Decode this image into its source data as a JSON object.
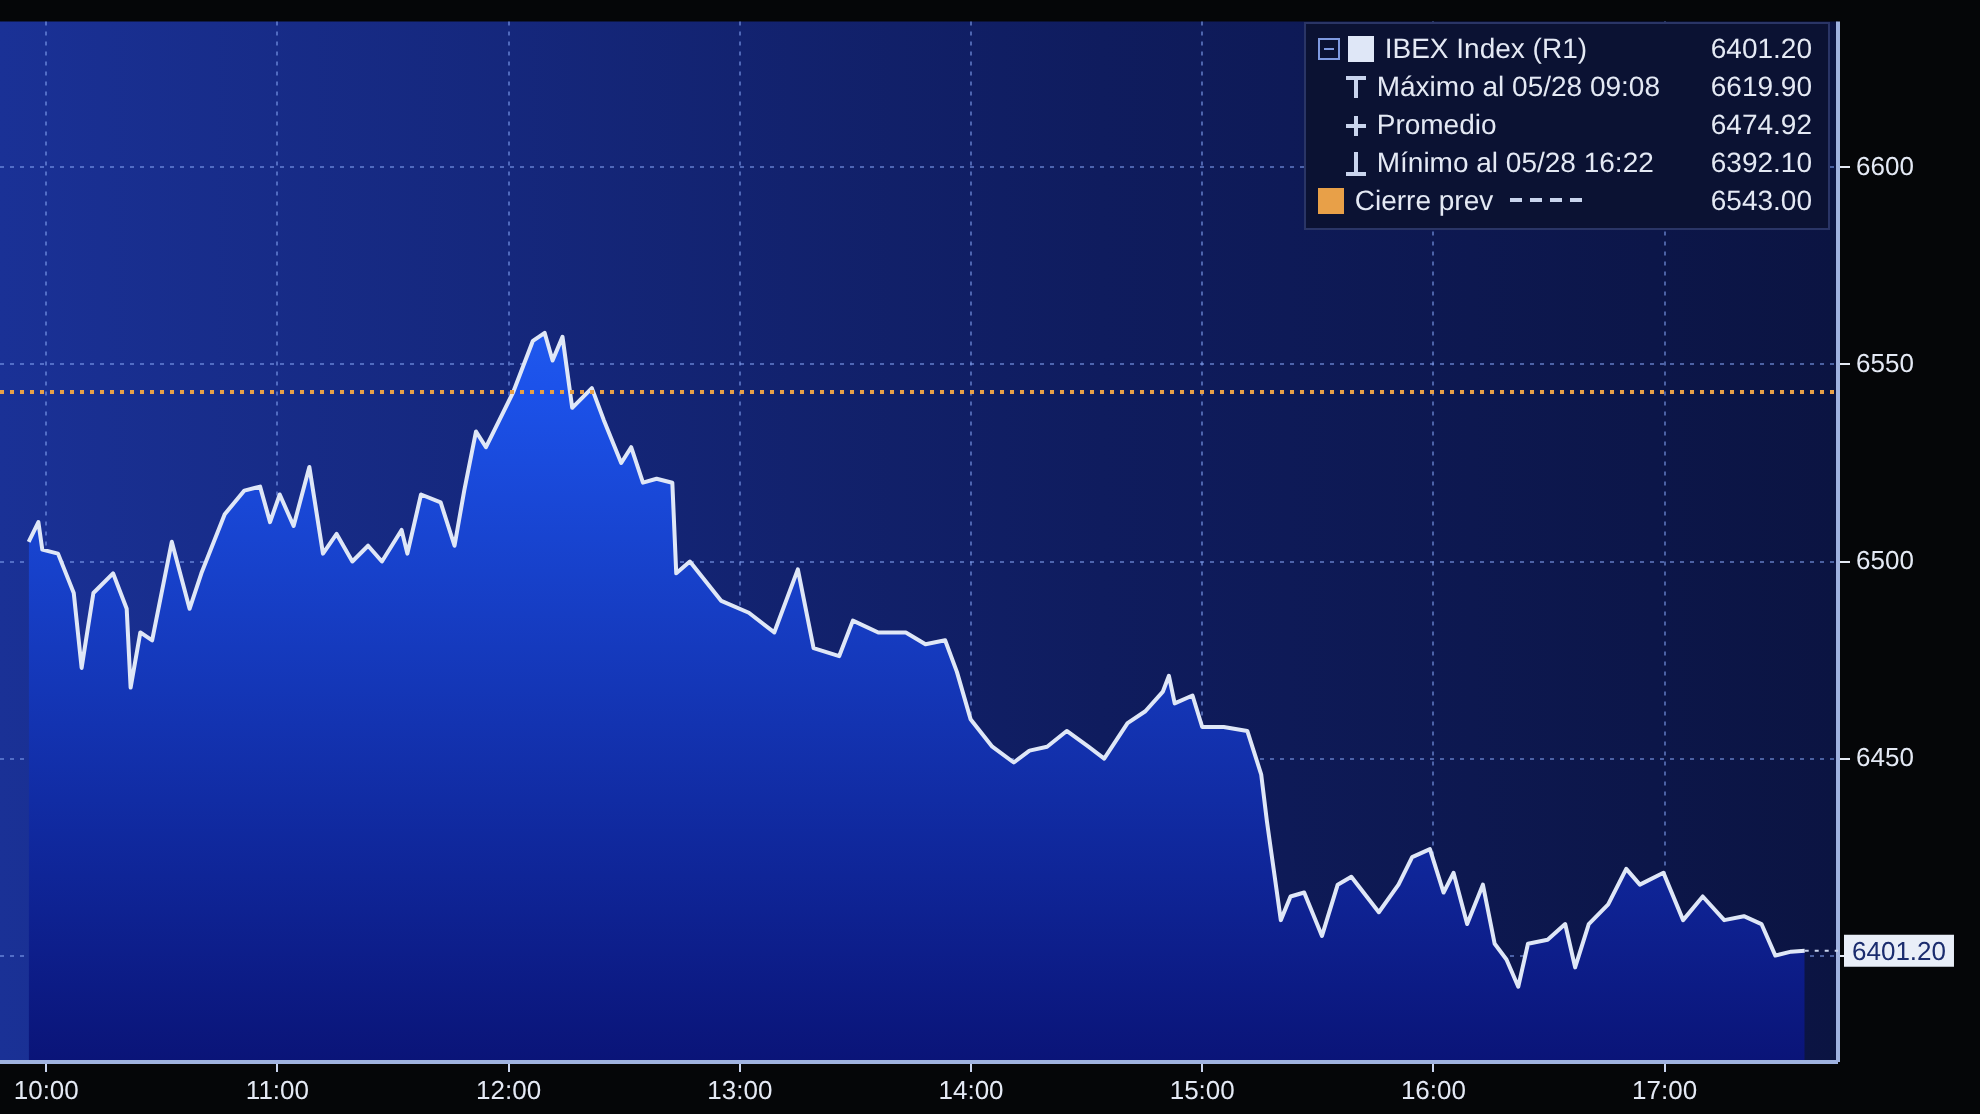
{
  "chart_data": {
    "type": "area",
    "x": [
      9.924,
      9.966,
      9.983,
      10.051,
      10.119,
      10.153,
      10.204,
      10.289,
      10.348,
      10.365,
      10.407,
      10.458,
      10.543,
      10.62,
      10.671,
      10.772,
      10.857,
      10.925,
      10.968,
      11.01,
      11.07,
      11.138,
      11.197,
      11.256,
      11.324,
      11.392,
      11.452,
      11.537,
      11.562,
      11.621,
      11.706,
      11.766,
      11.808,
      11.859,
      11.902,
      11.961,
      12.02,
      12.105,
      12.156,
      12.19,
      12.233,
      12.275,
      12.36,
      12.411,
      12.487,
      12.53,
      12.581,
      12.64,
      12.708,
      12.725,
      12.784,
      12.92,
      13.039,
      13.149,
      13.251,
      13.319,
      13.43,
      13.489,
      13.599,
      13.718,
      13.803,
      13.888,
      13.939,
      13.998,
      14.092,
      14.185,
      14.253,
      14.329,
      14.414,
      14.508,
      14.576,
      14.677,
      14.754,
      14.83,
      14.856,
      14.881,
      14.958,
      15.0,
      15.093,
      15.195,
      15.255,
      15.28,
      15.34,
      15.382,
      15.441,
      15.518,
      15.586,
      15.645,
      15.764,
      15.849,
      15.908,
      15.985,
      16.044,
      16.087,
      16.146,
      16.214,
      16.265,
      16.316,
      16.367,
      16.409,
      16.494,
      16.57,
      16.613,
      16.672,
      16.756,
      16.834,
      16.893,
      16.995,
      17.08,
      17.165,
      17.258,
      17.343,
      17.419,
      17.479,
      17.547,
      17.606
    ],
    "series": [
      {
        "name": "IBEX Index (R1)",
        "color": "#dfe7f7",
        "values": [
          6505,
          6510,
          6503,
          6502,
          6492,
          6473,
          6492,
          6497,
          6488,
          6468,
          6482,
          6480,
          6505,
          6488,
          6497,
          6512,
          6518,
          6519,
          6510,
          6517,
          6509,
          6524,
          6502,
          6507,
          6500,
          6504,
          6500,
          6508,
          6502,
          6517,
          6515,
          6504,
          6518,
          6533,
          6529,
          6536,
          6543,
          6556,
          6558,
          6551,
          6557,
          6539,
          6544,
          6536,
          6525,
          6529,
          6520,
          6521,
          6520,
          6497,
          6500,
          6490,
          6487,
          6482,
          6498,
          6478,
          6476,
          6485,
          6482,
          6482,
          6479,
          6480,
          6472,
          6460,
          6453,
          6449,
          6452,
          6453,
          6457,
          6453,
          6450,
          6459,
          6462,
          6467,
          6471,
          6464,
          6466,
          6458,
          6458,
          6457,
          6446,
          6434,
          6409,
          6415,
          6416,
          6405,
          6418,
          6420,
          6411,
          6418,
          6425,
          6427,
          6416,
          6421,
          6408,
          6418,
          6403,
          6399,
          6392.1,
          6403,
          6404,
          6408,
          6397,
          6408,
          6413,
          6422,
          6418,
          6421,
          6409,
          6415,
          6409,
          6410,
          6408,
          6400,
          6401,
          6401.2
        ]
      }
    ],
    "xlim": [
      9.8,
      17.75
    ],
    "xticks": [
      {
        "value": 10,
        "label": "10:00"
      },
      {
        "value": 11,
        "label": "11:00"
      },
      {
        "value": 12,
        "label": "12:00"
      },
      {
        "value": 13,
        "label": "13:00"
      },
      {
        "value": 14,
        "label": "14:00"
      },
      {
        "value": 15,
        "label": "15:00"
      },
      {
        "value": 16,
        "label": "16:00"
      },
      {
        "value": 17,
        "label": "17:00"
      }
    ],
    "ylim": [
      6373,
      6637
    ],
    "yticks": [
      {
        "value": 6400,
        "label": null
      },
      6450,
      6500,
      6550,
      6600
    ],
    "ref_lines": [
      {
        "axis": "y",
        "value": 6543,
        "label": "Cierre prev",
        "color": "#e8a048",
        "line_style": "dotted"
      }
    ],
    "annotations": [
      {
        "text": "6401.20",
        "x": 17.606,
        "y": 6401.2
      },
      "Máximo al 05/28 09:08",
      "6619.90",
      "Promedio",
      "6474.92",
      "Mínimo al 05/28 16:22",
      "6392.10",
      "6543.00"
    ],
    "grid": true,
    "legend": "top right"
  }
}
